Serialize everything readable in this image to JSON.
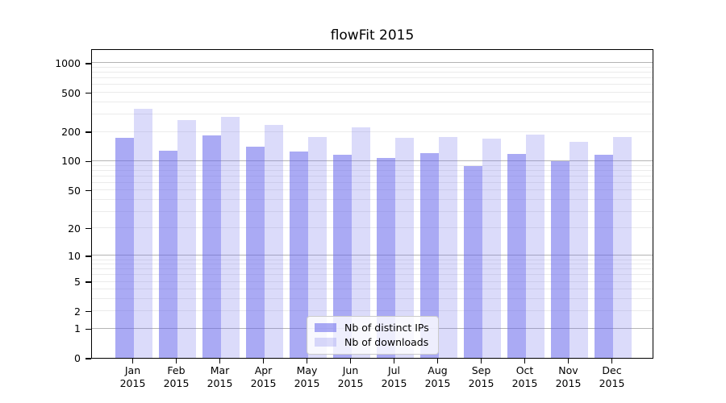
{
  "chart_data": {
    "type": "bar",
    "title": "flowFit 2015",
    "categories": [
      "Jan 2015",
      "Feb 2015",
      "Mar 2015",
      "Apr 2015",
      "May 2015",
      "Jun 2015",
      "Jul 2015",
      "Aug 2015",
      "Sep 2015",
      "Oct 2015",
      "Nov 2015",
      "Dec 2015"
    ],
    "series": [
      {
        "key": "distinct-ips",
        "name": "Nb of distinct IPs",
        "color": "rgba(100,100,235,0.55)",
        "values": [
          173,
          126,
          181,
          139,
          125,
          116,
          107,
          120,
          89,
          117,
          100,
          115
        ]
      },
      {
        "key": "downloads",
        "name": "Nb of downloads",
        "color": "rgba(110,110,235,0.25)",
        "values": [
          341,
          262,
          283,
          234,
          176,
          220,
          172,
          175,
          168,
          186,
          157,
          175
        ]
      }
    ],
    "y_axis": {
      "scale": "log10(value+1)",
      "ticks": [
        0,
        1,
        2,
        5,
        10,
        20,
        50,
        100,
        200,
        500,
        1000
      ],
      "range": [
        0,
        1400
      ]
    },
    "gridlines": {
      "major": [
        1,
        10,
        100,
        1000
      ],
      "minor": [
        2,
        3,
        4,
        5,
        6,
        7,
        8,
        9,
        20,
        30,
        40,
        50,
        60,
        70,
        80,
        90,
        200,
        300,
        400,
        500,
        600,
        700,
        800,
        900
      ]
    },
    "legend_position": "lower center",
    "colors": {
      "grid_major": "#b4b4b4",
      "grid_minor": "#ebebeb",
      "spine": "#000000",
      "background": "#ffffff"
    }
  }
}
